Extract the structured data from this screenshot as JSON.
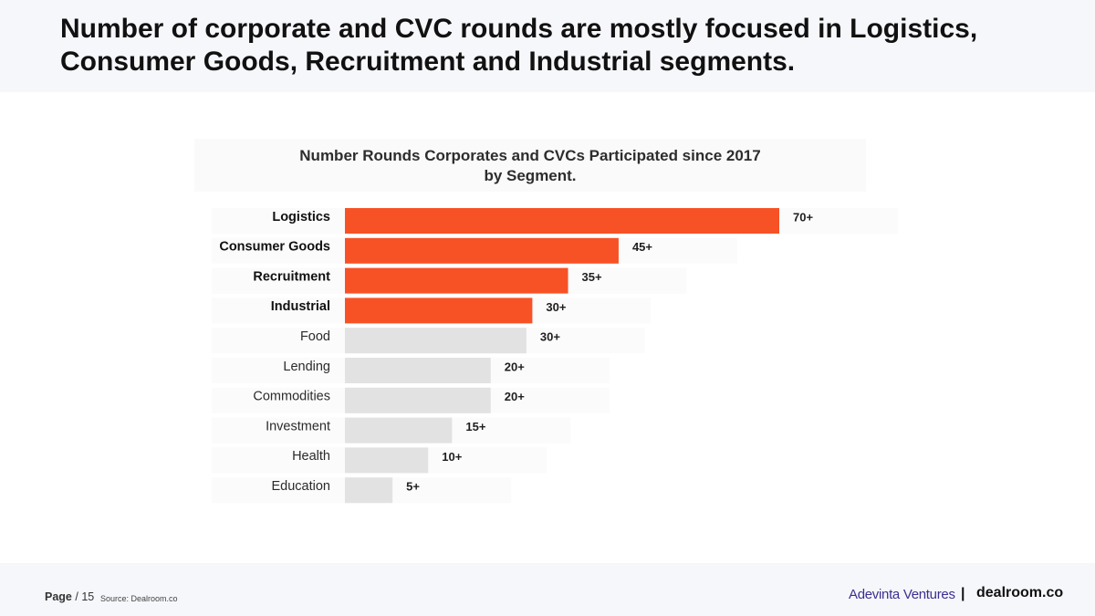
{
  "header": {
    "title": "Number of corporate and CVC rounds are mostly focused in Logistics,\nConsumer Goods, Recruitment and Industrial segments."
  },
  "chart_data": {
    "type": "bar",
    "orientation": "horizontal",
    "title": "Number Rounds Corporates and CVCs Participated since 2017\nby Segment.",
    "categories": [
      "Logistics",
      "Consumer Goods",
      "Recruitment",
      "Industrial",
      "Food",
      "Lending",
      "Commodities",
      "Investment",
      "Health",
      "Education"
    ],
    "values": [
      73,
      46,
      37.5,
      31.5,
      30.5,
      24.5,
      24.5,
      18,
      14,
      8
    ],
    "labels": [
      "70+",
      "45+",
      "35+",
      "30+",
      "30+",
      "20+",
      "20+",
      "15+",
      "10+",
      "5+"
    ],
    "highlighted": [
      "Logistics",
      "Consumer Goods",
      "Recruitment",
      "Industrial"
    ],
    "colors": {
      "highlight": "#f75226",
      "default": "#e2e2e2"
    },
    "xlim": [
      0,
      73
    ],
    "grid": false,
    "legend": "none"
  },
  "footer": {
    "page_label": "Page",
    "page_number": "/ 15",
    "source": "Source: Dealroom.co",
    "brand_left": "Adevinta Ventures",
    "separator": "|",
    "brand_right": "dealroom.co"
  }
}
